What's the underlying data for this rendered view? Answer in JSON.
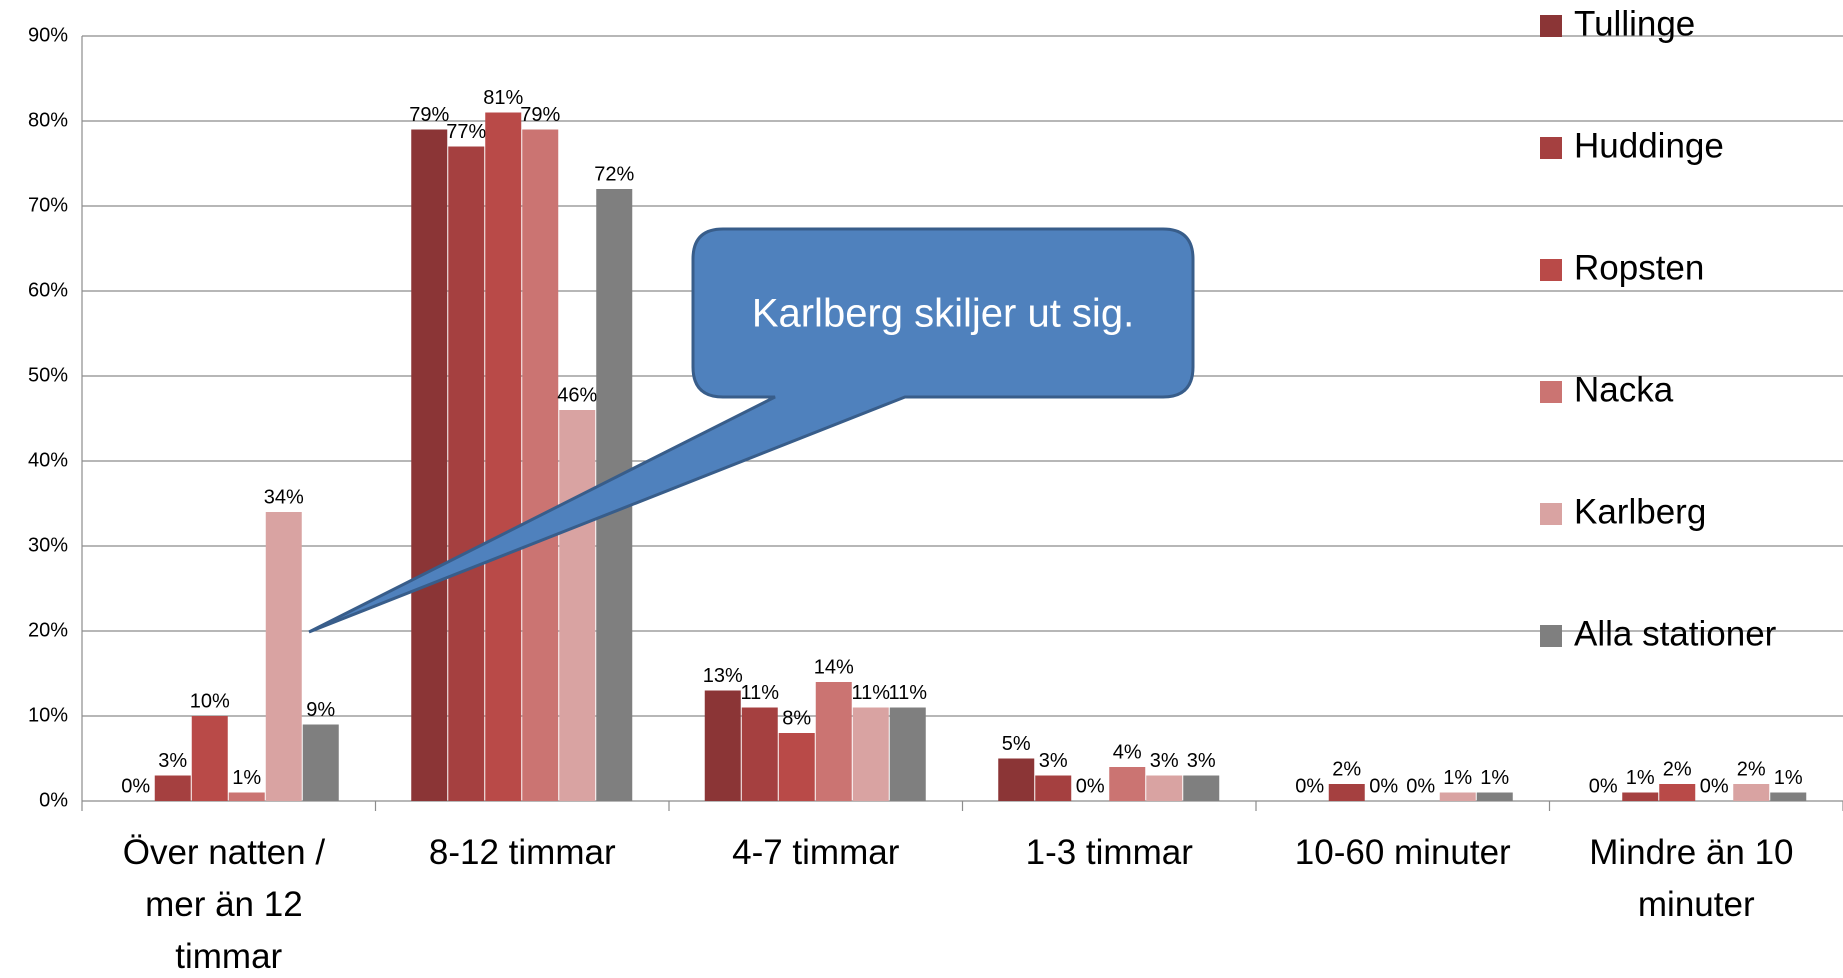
{
  "chart_data": {
    "type": "bar",
    "categories": [
      "Över natten / mer än 12 timmar",
      "8-12 timmar",
      "4-7 timmar",
      "1-3 timmar",
      "10-60 minuter",
      "Mindre än 10 minuter"
    ],
    "series": [
      {
        "name": "Tullinge",
        "color": "#8b3536",
        "values": [
          0,
          79,
          13,
          5,
          0,
          0
        ],
        "value_labels": [
          "0%",
          "79%",
          "13%",
          "5%",
          "0%",
          "0%"
        ]
      },
      {
        "name": "Huddinge",
        "color": "#a54040",
        "values": [
          3,
          77,
          11,
          3,
          2,
          1
        ],
        "value_labels": [
          "3%",
          "77%",
          "11%",
          "3%",
          "2%",
          "1%"
        ]
      },
      {
        "name": "Ropsten",
        "color": "#b94a48",
        "values": [
          10,
          81,
          8,
          0,
          0,
          2
        ],
        "value_labels": [
          "10%",
          "81%",
          "8%",
          "0%",
          "0%",
          "2%"
        ]
      },
      {
        "name": "Nacka",
        "color": "#cb7472",
        "values": [
          1,
          79,
          14,
          4,
          0,
          0
        ],
        "value_labels": [
          "1%",
          "79%",
          "14%",
          "4%",
          "0%",
          "0%"
        ]
      },
      {
        "name": "Karlberg",
        "color": "#d9a3a2",
        "values": [
          34,
          46,
          11,
          3,
          1,
          2
        ],
        "value_labels": [
          "34%",
          "46%",
          "11%",
          "3%",
          "1%",
          "2%"
        ]
      },
      {
        "name": "Alla stationer",
        "color": "#7f7f7f",
        "values": [
          9,
          72,
          11,
          3,
          1,
          1
        ],
        "value_labels": [
          "9%",
          "72%",
          "11%",
          "3%",
          "1%",
          "1%"
        ]
      }
    ],
    "ylim": [
      0,
      90
    ],
    "yticks": [
      {
        "value": 0,
        "label": "0%"
      },
      {
        "value": 10,
        "label": "10%"
      },
      {
        "value": 20,
        "label": "20%"
      },
      {
        "value": 30,
        "label": "30%"
      },
      {
        "value": 40,
        "label": "40%"
      },
      {
        "value": 50,
        "label": "50%"
      },
      {
        "value": 60,
        "label": "60%"
      },
      {
        "value": 70,
        "label": "70%"
      },
      {
        "value": 80,
        "label": "80%"
      },
      {
        "value": 90,
        "label": "90%"
      }
    ],
    "grid": true,
    "legend": "right",
    "annotations": [
      "Karlberg skiljer ut sig."
    ]
  }
}
